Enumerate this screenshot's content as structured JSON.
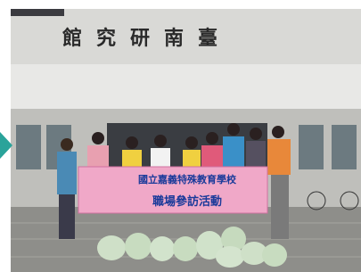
{
  "building_sign": "館究研南臺",
  "banner": {
    "line1": "國立嘉義特殊教育學校",
    "line2": "職場參訪活動"
  }
}
